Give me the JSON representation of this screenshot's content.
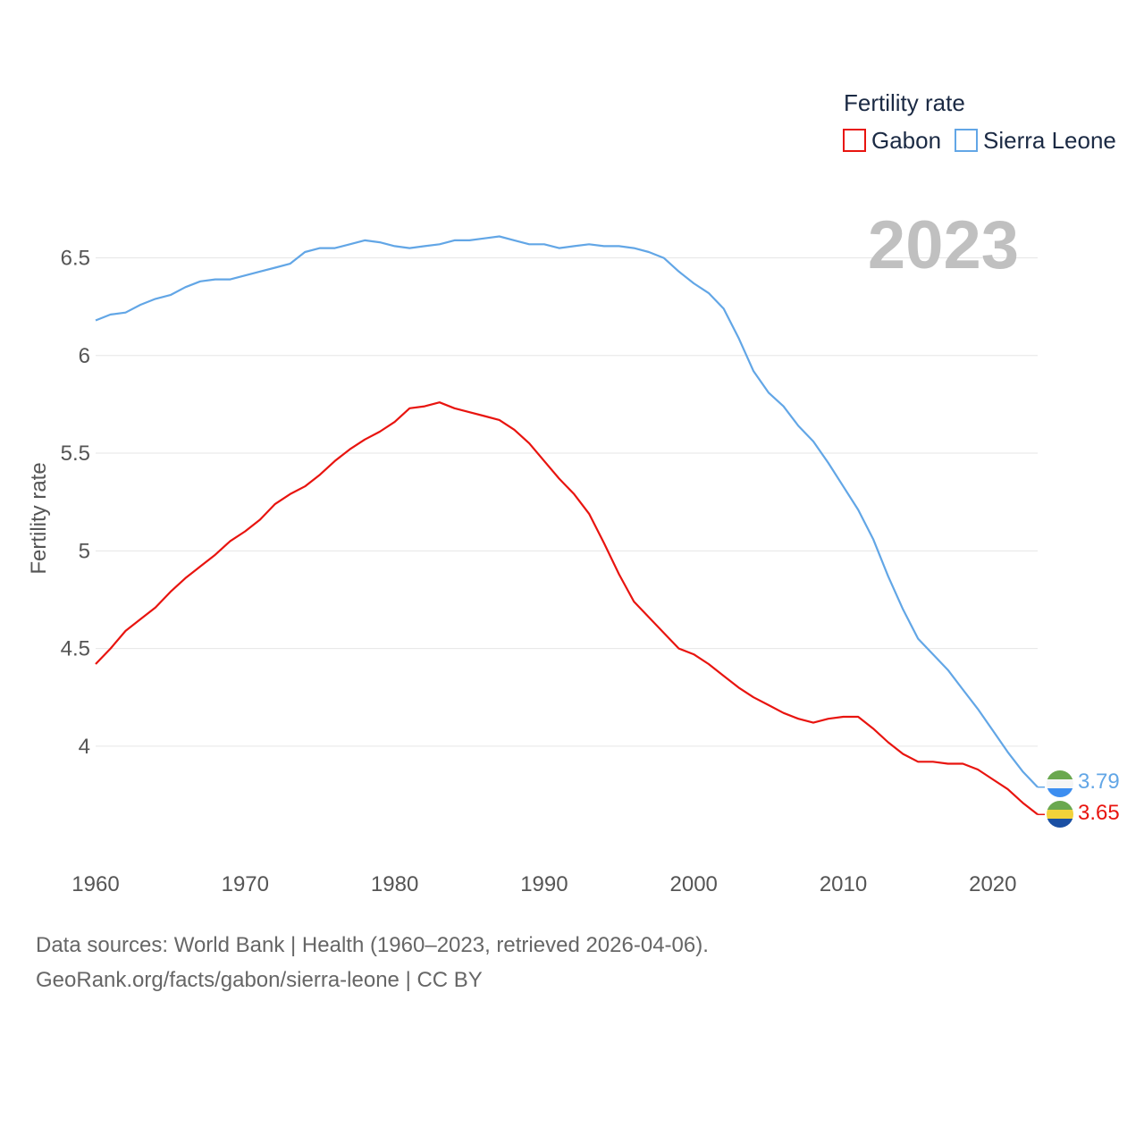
{
  "chart_data": {
    "type": "line",
    "title": "Fertility rate",
    "ylabel": "Fertility rate",
    "xlabel": "",
    "xlim": [
      1960,
      2023
    ],
    "ylim": [
      3.45,
      6.8
    ],
    "yticks": [
      4,
      4.5,
      5,
      5.5,
      6,
      6.5
    ],
    "ytick_labels": [
      "4",
      "4.5",
      "5",
      "5.5",
      "6",
      "6.5"
    ],
    "xticks": [
      1960,
      1970,
      1980,
      1990,
      2000,
      2010,
      2020
    ],
    "xtick_labels": [
      "1960",
      "1970",
      "1980",
      "1990",
      "2000",
      "2010",
      "2020"
    ],
    "year_display": "2023",
    "grid": true,
    "legend_position": "top-right",
    "x": [
      1960,
      1961,
      1962,
      1963,
      1964,
      1965,
      1966,
      1967,
      1968,
      1969,
      1970,
      1971,
      1972,
      1973,
      1974,
      1975,
      1976,
      1977,
      1978,
      1979,
      1980,
      1981,
      1982,
      1983,
      1984,
      1985,
      1986,
      1987,
      1988,
      1989,
      1990,
      1991,
      1992,
      1993,
      1994,
      1995,
      1996,
      1997,
      1998,
      1999,
      2000,
      2001,
      2002,
      2003,
      2004,
      2005,
      2006,
      2007,
      2008,
      2009,
      2010,
      2011,
      2012,
      2013,
      2014,
      2015,
      2016,
      2017,
      2018,
      2019,
      2020,
      2021,
      2022,
      2023
    ],
    "series": [
      {
        "name": "Gabon",
        "color": "#e8140f",
        "end_label": "3.65",
        "values": [
          4.42,
          4.5,
          4.59,
          4.65,
          4.71,
          4.79,
          4.86,
          4.92,
          4.98,
          5.05,
          5.1,
          5.16,
          5.24,
          5.29,
          5.33,
          5.39,
          5.46,
          5.52,
          5.57,
          5.61,
          5.66,
          5.73,
          5.74,
          5.76,
          5.73,
          5.71,
          5.69,
          5.67,
          5.62,
          5.55,
          5.46,
          5.37,
          5.29,
          5.19,
          5.04,
          4.88,
          4.74,
          4.66,
          4.58,
          4.5,
          4.47,
          4.42,
          4.36,
          4.3,
          4.25,
          4.21,
          4.17,
          4.14,
          4.12,
          4.14,
          4.15,
          4.15,
          4.09,
          4.02,
          3.96,
          3.92,
          3.92,
          3.91,
          3.91,
          3.88,
          3.83,
          3.78,
          3.71,
          3.65
        ]
      },
      {
        "name": "Sierra Leone",
        "color": "#62a6e6",
        "end_label": "3.79",
        "values": [
          6.18,
          6.21,
          6.22,
          6.26,
          6.29,
          6.31,
          6.35,
          6.38,
          6.39,
          6.39,
          6.41,
          6.43,
          6.45,
          6.47,
          6.53,
          6.55,
          6.55,
          6.57,
          6.59,
          6.58,
          6.56,
          6.55,
          6.56,
          6.57,
          6.59,
          6.59,
          6.6,
          6.61,
          6.59,
          6.57,
          6.57,
          6.55,
          6.56,
          6.57,
          6.56,
          6.56,
          6.55,
          6.53,
          6.5,
          6.43,
          6.37,
          6.32,
          6.24,
          6.09,
          5.92,
          5.81,
          5.74,
          5.64,
          5.56,
          5.45,
          5.33,
          5.21,
          5.06,
          4.87,
          4.7,
          4.55,
          4.47,
          4.39,
          4.29,
          4.19,
          4.08,
          3.97,
          3.87,
          3.79
        ]
      }
    ]
  },
  "footer": {
    "line1": "Data sources: World Bank | Health (1960–2023, retrieved 2026-04-06).",
    "line2": "GeoRank.org/facts/gabon/sierra-leone | CC BY"
  }
}
